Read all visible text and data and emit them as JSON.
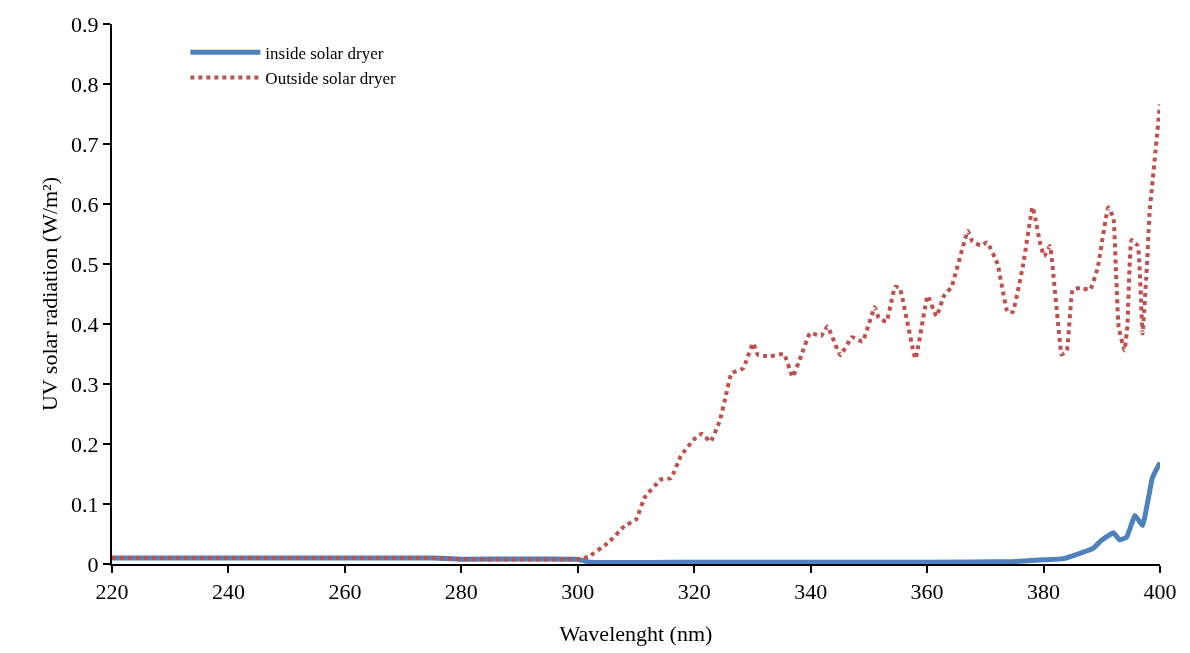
{
  "chart_data": {
    "type": "line",
    "xlabel": "Wavelenght (nm)",
    "ylabel": "UV solar radiation (W/m²)",
    "xlim": [
      220,
      400
    ],
    "xticks": [
      220,
      240,
      260,
      280,
      300,
      320,
      340,
      360,
      380,
      400
    ],
    "ylim": [
      0,
      0.9
    ],
    "yticks": [
      0,
      0.1,
      0.2,
      0.3,
      0.4,
      0.5,
      0.6,
      0.7,
      0.8,
      0.9
    ],
    "grid": false,
    "legend": "top left",
    "marker": "none",
    "series": [
      {
        "name": "inside solar dryer",
        "color": "#4f81bd",
        "line_style": "solid",
        "x": [
          220,
          250,
          275,
          280,
          300,
          302,
          320,
          340,
          360,
          375,
          380,
          383.4,
          386,
          388.5,
          390,
          392,
          393.1,
          394.3,
          395.7,
          397,
          398.7,
          400
        ],
        "values": [
          0.01,
          0.01,
          0.01,
          0.008,
          0.008,
          0.003,
          0.003,
          0.003,
          0.003,
          0.004,
          0.007,
          0.009,
          0.017,
          0.026,
          0.04,
          0.052,
          0.04,
          0.045,
          0.081,
          0.064,
          0.144,
          0.169
        ]
      },
      {
        "name": "Outside solar dryer",
        "color": "#c0504d",
        "line_style": "dotted",
        "x": [
          220,
          250,
          275,
          280,
          300,
          301.8,
          305.3,
          308.1,
          310,
          311.5,
          314.3,
          316,
          317.7,
          320,
          321.3,
          322.8,
          324.4,
          325.4,
          326.4,
          328.4,
          330.1,
          330.9,
          332.9,
          335.4,
          336.9,
          338.4,
          339.9,
          341.8,
          342.9,
          345.1,
          347.1,
          348.9,
          351,
          351.7,
          353,
          354.5,
          355.3,
          358,
          360.1,
          361.6,
          362.9,
          364.2,
          367,
          367.8,
          369.2,
          370.3,
          372.1,
          373.8,
          374.7,
          376.5,
          378.1,
          378.6,
          379.4,
          380.1,
          381.1,
          381.4,
          382.8,
          383.1,
          384,
          385,
          386.4,
          388,
          389.3,
          391.1,
          392,
          392.4,
          392.9,
          393.9,
          394.4,
          395.1,
          396.2,
          397,
          397.8,
          398.2,
          398.6,
          400
        ],
        "values": [
          0.01,
          0.01,
          0.01,
          0.008,
          0.008,
          0.012,
          0.036,
          0.064,
          0.074,
          0.111,
          0.141,
          0.143,
          0.18,
          0.208,
          0.217,
          0.204,
          0.239,
          0.279,
          0.318,
          0.326,
          0.368,
          0.349,
          0.346,
          0.35,
          0.312,
          0.348,
          0.385,
          0.38,
          0.396,
          0.348,
          0.378,
          0.371,
          0.428,
          0.41,
          0.404,
          0.462,
          0.46,
          0.342,
          0.447,
          0.413,
          0.447,
          0.462,
          0.555,
          0.537,
          0.531,
          0.536,
          0.5,
          0.42,
          0.42,
          0.499,
          0.595,
          0.575,
          0.535,
          0.513,
          0.53,
          0.51,
          0.37,
          0.349,
          0.356,
          0.457,
          0.46,
          0.457,
          0.494,
          0.594,
          0.577,
          0.497,
          0.395,
          0.356,
          0.397,
          0.54,
          0.53,
          0.384,
          0.505,
          0.585,
          0.625,
          0.766
        ]
      }
    ]
  }
}
